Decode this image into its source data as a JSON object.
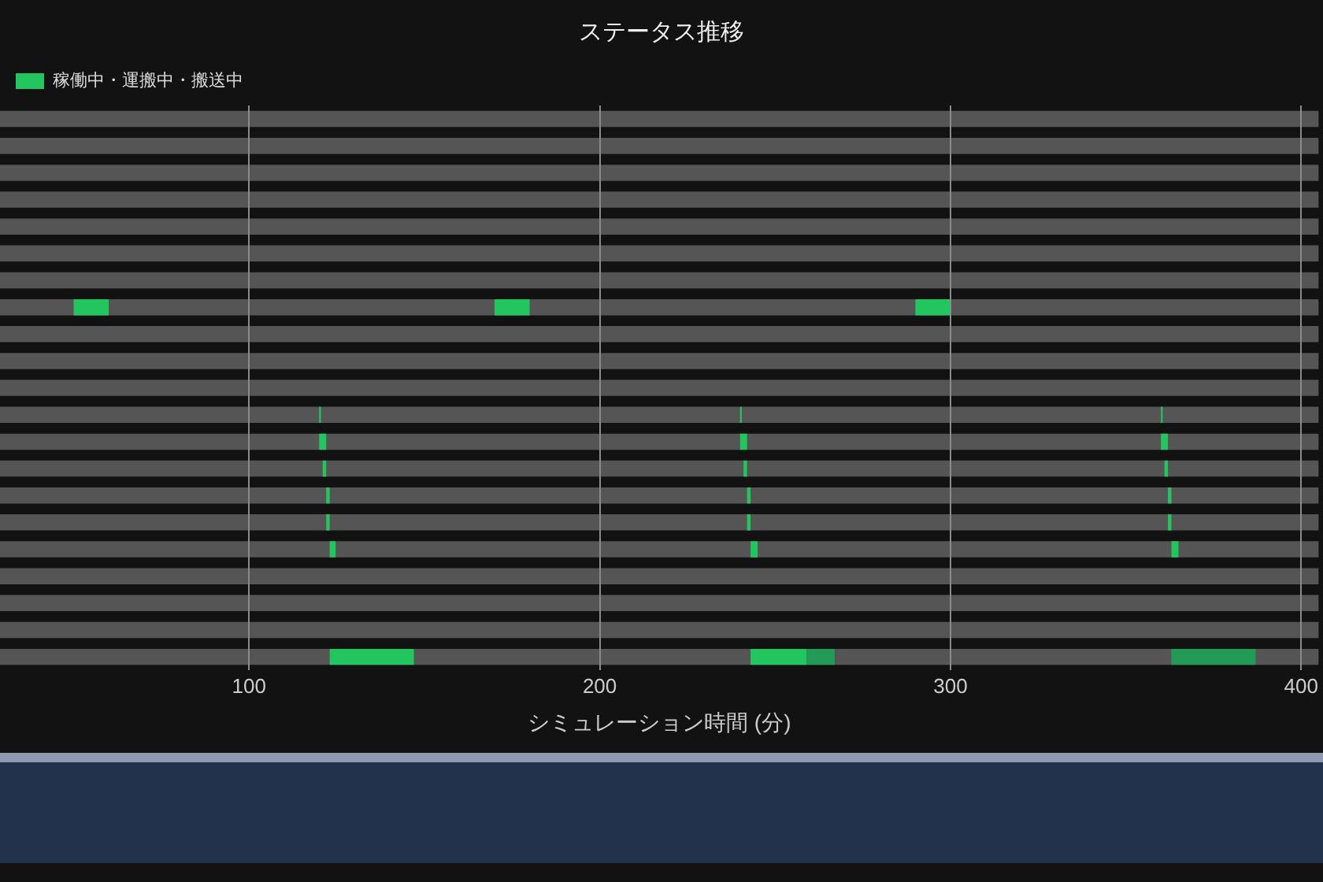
{
  "chart_data": {
    "type": "bar",
    "orientation": "horizontal",
    "title": "ステータス推移",
    "xlabel": "シミュレーション時間 (分)",
    "categories": [
      null,
      null,
      null,
      null,
      null,
      null,
      null,
      null,
      null,
      null,
      null,
      null,
      null,
      null,
      null,
      null,
      null,
      null,
      null,
      null,
      null
    ],
    "xlim": [
      29,
      405
    ],
    "xticks": [
      100,
      200,
      300,
      400
    ],
    "grid": "x",
    "legend": "top left",
    "tick_labels": "x",
    "series": [
      {
        "color": "#555555",
        "base": [
          29,
          29,
          29,
          29,
          29,
          29,
          29,
          29,
          29,
          29,
          29,
          29,
          29,
          29,
          29,
          29,
          29,
          29,
          29,
          29,
          29
        ],
        "values": [
          376,
          376,
          376,
          376,
          376,
          376,
          376,
          376,
          376,
          376,
          376,
          376,
          376,
          376,
          376,
          376,
          376,
          376,
          376,
          376,
          376
        ]
      },
      {
        "name": "稼働中・運搬中・搬送中",
        "color": "#22c55e",
        "base": [
          null,
          null,
          null,
          null,
          null,
          null,
          null,
          50,
          null,
          null,
          null,
          120,
          120,
          121,
          122,
          122,
          123,
          null,
          null,
          null,
          123
        ],
        "values": [
          null,
          null,
          null,
          null,
          null,
          null,
          null,
          10,
          null,
          null,
          null,
          0.5,
          2,
          1,
          1,
          1,
          1.7,
          null,
          null,
          null,
          24
        ]
      },
      {
        "color": "#22c55e",
        "base": [
          null,
          null,
          null,
          null,
          null,
          null,
          null,
          170,
          null,
          null,
          null,
          240,
          240,
          241,
          242,
          242,
          243,
          null,
          null,
          null,
          243
        ],
        "values": [
          null,
          null,
          null,
          null,
          null,
          null,
          null,
          10,
          null,
          null,
          null,
          0.5,
          2,
          1,
          1,
          1,
          2,
          null,
          null,
          null,
          16
        ]
      },
      {
        "color": "#22c55e",
        "base": [
          null,
          null,
          null,
          null,
          null,
          null,
          null,
          290,
          null,
          null,
          null,
          360,
          360,
          361,
          362,
          362,
          363,
          null,
          null,
          null,
          null
        ],
        "values": [
          null,
          null,
          null,
          null,
          null,
          null,
          null,
          10,
          null,
          null,
          null,
          0.5,
          2,
          1,
          1,
          1,
          2,
          null,
          null,
          null,
          null
        ]
      },
      {
        "color": "#239b56",
        "base": [
          null,
          null,
          null,
          null,
          null,
          null,
          null,
          null,
          null,
          null,
          null,
          null,
          null,
          null,
          null,
          null,
          null,
          null,
          null,
          null,
          259
        ],
        "values": [
          null,
          null,
          null,
          null,
          null,
          null,
          null,
          null,
          null,
          null,
          null,
          null,
          null,
          null,
          null,
          null,
          null,
          null,
          null,
          null,
          8
        ]
      },
      {
        "color": "#239b56",
        "base": [
          null,
          null,
          null,
          null,
          null,
          null,
          null,
          null,
          null,
          null,
          null,
          null,
          null,
          null,
          null,
          null,
          null,
          null,
          null,
          null,
          363
        ],
        "values": [
          null,
          null,
          null,
          null,
          null,
          null,
          null,
          null,
          null,
          null,
          null,
          null,
          null,
          null,
          null,
          null,
          null,
          null,
          null,
          null,
          24
        ]
      }
    ]
  }
}
